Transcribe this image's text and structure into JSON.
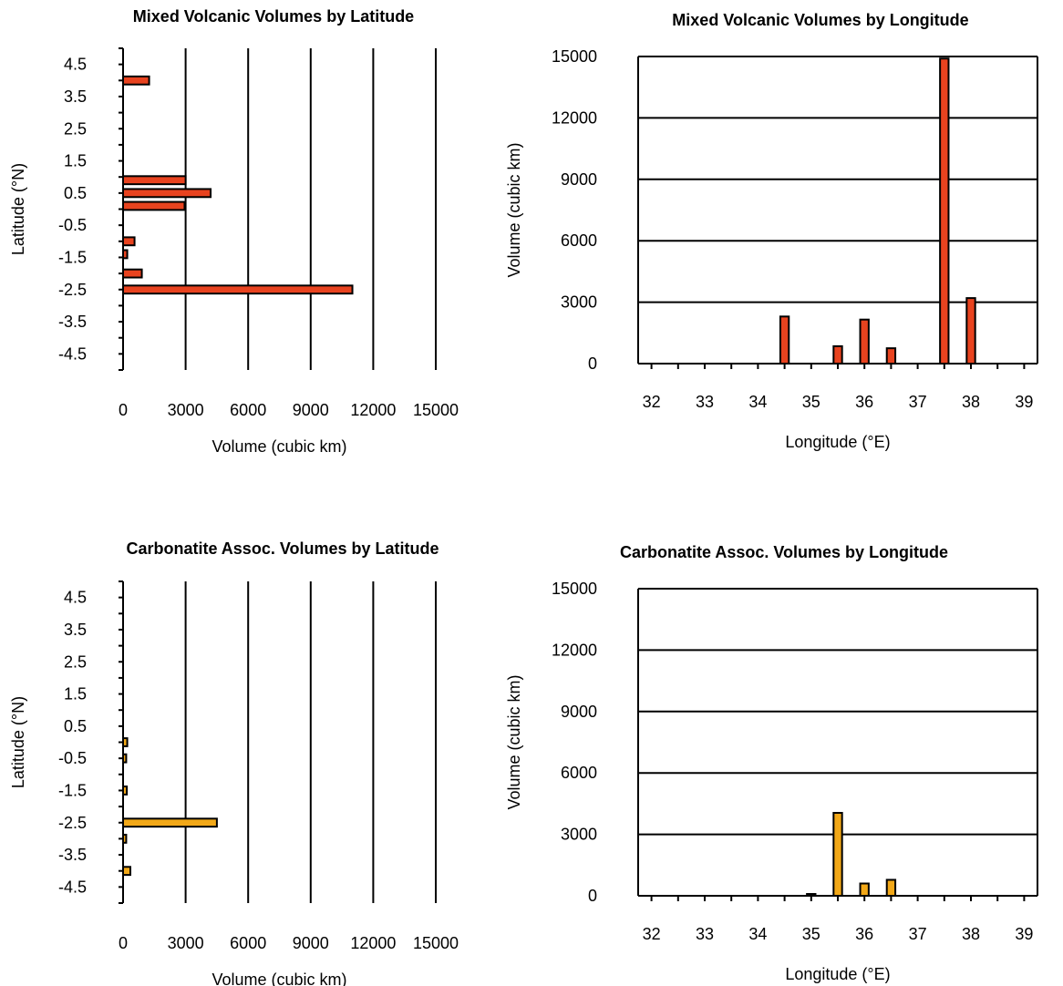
{
  "chart_data": [
    {
      "type": "bar",
      "orientation": "horizontal",
      "title": "Mixed Volcanic Volumes by Latitude",
      "xlabel": "Volume (cubic km)",
      "ylabel": "Latitude (°N)",
      "xlim": [
        0,
        15000
      ],
      "xticks": [
        "0",
        "3000",
        "6000",
        "9000",
        "12000",
        "15000"
      ],
      "ylim": [
        -5,
        5
      ],
      "yticks": [
        "4.5",
        "3.5",
        "2.5",
        "1.5",
        "0.5",
        "-0.5",
        "-1.5",
        "-2.5",
        "-3.5",
        "-4.5"
      ],
      "grid": "vertical",
      "bar_color": "#e8431f",
      "latitudes": [
        4.0,
        0.9,
        0.5,
        0.1,
        -1.0,
        -1.4,
        -2.0,
        -2.5
      ],
      "values": [
        1250,
        3000,
        4200,
        2950,
        550,
        200,
        900,
        11000
      ]
    },
    {
      "type": "bar",
      "title": "Mixed Volcanic Volumes by Longitude",
      "xlabel": "Longitude (°E)",
      "ylabel": "Volume (cubic km)",
      "xlim": [
        31.75,
        39.25
      ],
      "xticks": [
        "32",
        "33",
        "34",
        "35",
        "36",
        "37",
        "38",
        "39"
      ],
      "ylim": [
        0,
        15000
      ],
      "yticks": [
        "0",
        "3000",
        "6000",
        "9000",
        "12000",
        "15000"
      ],
      "grid": "horizontal",
      "bar_color": "#e8431f",
      "longitudes": [
        34.5,
        35.5,
        36.0,
        36.5,
        37.5,
        38.0
      ],
      "values": [
        2300,
        850,
        2150,
        750,
        14900,
        3200
      ]
    },
    {
      "type": "bar",
      "orientation": "horizontal",
      "title": "Carbonatite Assoc. Volumes by Latitude",
      "xlabel": "Volume (cubic km)",
      "ylabel": "Latitude (°N)",
      "xlim": [
        0,
        15000
      ],
      "xticks": [
        "0",
        "3000",
        "6000",
        "9000",
        "12000",
        "15000"
      ],
      "ylim": [
        -5,
        5
      ],
      "yticks": [
        "4.5",
        "3.5",
        "2.5",
        "1.5",
        "0.5",
        "-0.5",
        "-1.5",
        "-2.5",
        "-3.5",
        "-4.5"
      ],
      "grid": "vertical",
      "bar_color": "#f2a818",
      "latitudes": [
        0.0,
        -0.5,
        -1.5,
        -2.5,
        -3.0,
        -4.0
      ],
      "values": [
        200,
        150,
        180,
        4500,
        150,
        350
      ]
    },
    {
      "type": "bar",
      "title": "Carbonatite Assoc. Volumes by Longitude",
      "xlabel": "Longitude (°E)",
      "ylabel": "Volume (cubic km)",
      "xlim": [
        31.75,
        39.25
      ],
      "xticks": [
        "32",
        "33",
        "34",
        "35",
        "36",
        "37",
        "38",
        "39"
      ],
      "ylim": [
        0,
        15000
      ],
      "yticks": [
        "0",
        "3000",
        "6000",
        "9000",
        "12000",
        "15000"
      ],
      "grid": "horizontal",
      "bar_color": "#f2a818",
      "longitudes": [
        35.0,
        35.5,
        36.0,
        36.5
      ],
      "values": [
        40,
        4050,
        600,
        780
      ]
    }
  ]
}
